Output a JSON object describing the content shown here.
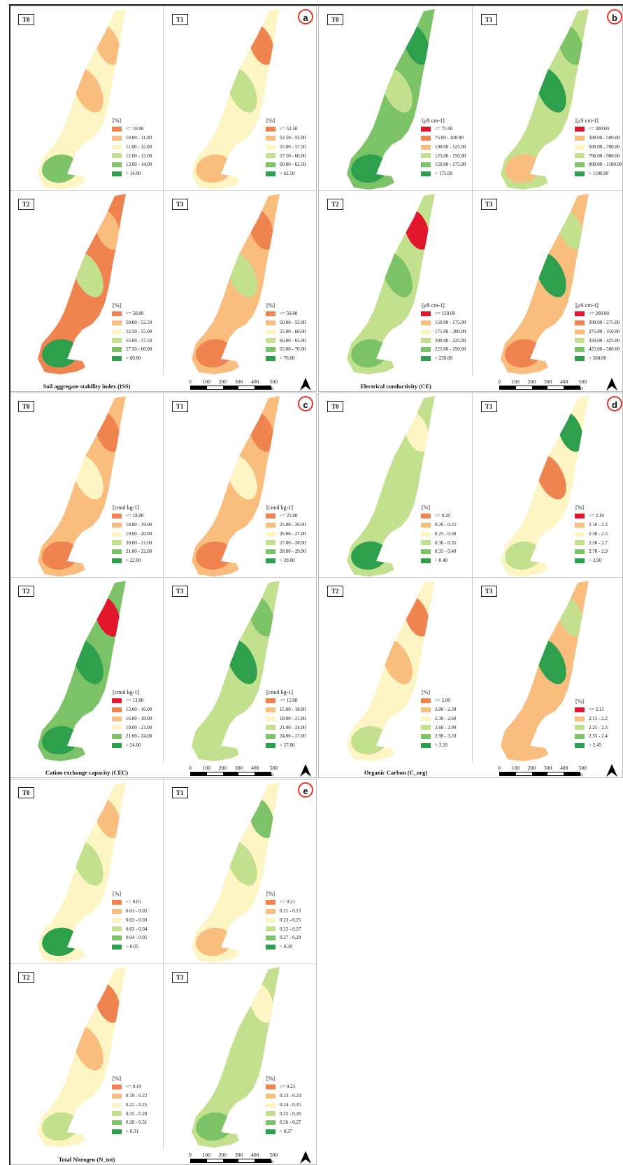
{
  "scale_labels": [
    "0",
    "100",
    "200",
    "300",
    "400",
    "500 m"
  ],
  "north_label": "north-arrow",
  "colors": {
    "red": "#e2162c",
    "orange": "#f08450",
    "lightorange": "#f9bd7e",
    "cream": "#fdf5c3",
    "lightgreen": "#c3e08e",
    "green": "#7cc267",
    "darkgreen": "#2ea04d"
  },
  "panels": [
    {
      "letter": "a",
      "title": "Soil aggregate stability index (ISS)",
      "cells": [
        {
          "label": "T0",
          "unit": "[%]",
          "classes": [
            "<= 10.00",
            "10.00 - 11.00",
            "11.00 - 12.00",
            "12.00 - 13.00",
            "13.00 - 14.00",
            "> 14.00"
          ],
          "swatches": [
            "#f08450",
            "#f9bd7e",
            "#fdf5c3",
            "#c3e08e",
            "#7cc267",
            "#2ea04d"
          ],
          "base": "#fdf5c3",
          "patches": [
            "#f9bd7e",
            "#f9bd7e",
            "#7cc267"
          ]
        },
        {
          "label": "T1",
          "unit": "[%]",
          "classes": [
            "<= 52.50",
            "52.50 - 55.00",
            "55.00 - 57.50",
            "57.50 - 60.00",
            "60.00 - 62.50",
            "> 62.50"
          ],
          "swatches": [
            "#f08450",
            "#f9bd7e",
            "#fdf5c3",
            "#c3e08e",
            "#7cc267",
            "#2ea04d"
          ],
          "base": "#fdf5c3",
          "patches": [
            "#f08450",
            "#c3e08e",
            "#f9bd7e"
          ]
        },
        {
          "label": "T2",
          "unit": "[%]",
          "classes": [
            "<= 50.00",
            "50.00 - 52.50",
            "52.50 - 55.00",
            "55.00 - 57.50",
            "57.50 - 60.00",
            "> 60.00"
          ],
          "swatches": [
            "#f08450",
            "#f9bd7e",
            "#fdf5c3",
            "#c3e08e",
            "#7cc267",
            "#2ea04d"
          ],
          "base": "#f08450",
          "patches": [
            "#f9bd7e",
            "#c3e08e",
            "#2ea04d"
          ]
        },
        {
          "label": "T3",
          "unit": "[%]",
          "classes": [
            "<= 50.00",
            "50.00 - 55.00",
            "55.00 - 60.00",
            "60.00 - 65.00",
            "65.00 - 70.00",
            "> 70.00"
          ],
          "swatches": [
            "#f08450",
            "#f9bd7e",
            "#fdf5c3",
            "#c3e08e",
            "#7cc267",
            "#2ea04d"
          ],
          "base": "#f9bd7e",
          "patches": [
            "#f08450",
            "#c3e08e",
            "#f08450"
          ]
        }
      ]
    },
    {
      "letter": "b",
      "title": "Electrical conductivity (CE)",
      "cells": [
        {
          "label": "T0",
          "unit": "[µS cm-1]",
          "classes": [
            "<= 75.00",
            "75.00 - 100.00",
            "100.00 - 125.00",
            "125.00 - 150.00",
            "150.00 - 175.00",
            "> 175.00"
          ],
          "swatches": [
            "#e2162c",
            "#f08450",
            "#f9bd7e",
            "#c3e08e",
            "#7cc267",
            "#2ea04d"
          ],
          "base": "#7cc267",
          "patches": [
            "#2ea04d",
            "#c3e08e",
            "#2ea04d"
          ]
        },
        {
          "label": "T1",
          "unit": "[µS cm-1]",
          "classes": [
            "<= 300.00",
            "300.00 - 500.00",
            "500.00 - 700.00",
            "700.00 - 900.00",
            "900.00 - 1100.00",
            "> 1100.00"
          ],
          "swatches": [
            "#e2162c",
            "#f9bd7e",
            "#fdf5c3",
            "#c3e08e",
            "#7cc267",
            "#2ea04d"
          ],
          "base": "#c3e08e",
          "patches": [
            "#7cc267",
            "#2ea04d",
            "#f9bd7e"
          ]
        },
        {
          "label": "T2",
          "unit": "[µS cm-1]",
          "classes": [
            "<= 150.00",
            "150.00 - 175.00",
            "175.00 - 200.00",
            "200.00 - 225.00",
            "225.00 - 250.00",
            "> 250.00"
          ],
          "swatches": [
            "#e2162c",
            "#f9bd7e",
            "#fdf5c3",
            "#c3e08e",
            "#7cc267",
            "#2ea04d"
          ],
          "base": "#c3e08e",
          "patches": [
            "#e2162c",
            "#7cc267",
            "#7cc267"
          ]
        },
        {
          "label": "T3",
          "unit": "[µS cm-1]",
          "classes": [
            "<= 200.00",
            "200.00 - 275.00",
            "275.00 - 350.00",
            "350.00 - 425.00",
            "425.00 - 500.00",
            "> 500.00"
          ],
          "swatches": [
            "#e2162c",
            "#f08450",
            "#f9bd7e",
            "#c3e08e",
            "#7cc267",
            "#2ea04d"
          ],
          "base": "#f9bd7e",
          "patches": [
            "#c3e08e",
            "#2ea04d",
            "#f08450"
          ]
        }
      ]
    },
    {
      "letter": "c",
      "title": "Cation exchange capacity (CEC)",
      "cells": [
        {
          "label": "T0",
          "unit": "[cmol kg-1]",
          "classes": [
            "<= 18.00",
            "18.00 - 19.00",
            "19.00 - 20.00",
            "20.00 - 21.00",
            "21.00 - 22.00",
            "> 22.00"
          ],
          "swatches": [
            "#f08450",
            "#f9bd7e",
            "#fdf5c3",
            "#c3e08e",
            "#7cc267",
            "#2ea04d"
          ],
          "base": "#f9bd7e",
          "patches": [
            "#f08450",
            "#fdf5c3",
            "#f08450"
          ]
        },
        {
          "label": "T1",
          "unit": "[cmol kg-1]",
          "classes": [
            "<= 25.00",
            "25.00 - 26.00",
            "26.00 - 27.00",
            "27.00 - 28.00",
            "28.00 - 29.00",
            "> 29.00"
          ],
          "swatches": [
            "#f08450",
            "#f9bd7e",
            "#fdf5c3",
            "#c3e08e",
            "#7cc267",
            "#2ea04d"
          ],
          "base": "#f9bd7e",
          "patches": [
            "#f08450",
            "#fdf5c3",
            "#f08450"
          ]
        },
        {
          "label": "T2",
          "unit": "[cmol kg-1]",
          "classes": [
            "<= 13.00",
            "13.00 - 16.00",
            "16.00 - 19.00",
            "19.00 - 21.00",
            "21.00 - 24.00",
            "> 24.00"
          ],
          "swatches": [
            "#e2162c",
            "#f08450",
            "#f9bd7e",
            "#fdf5c3",
            "#7cc267",
            "#2ea04d"
          ],
          "base": "#7cc267",
          "patches": [
            "#e2162c",
            "#2ea04d",
            "#2ea04d"
          ]
        },
        {
          "label": "T3",
          "unit": "[cmol kg-1]",
          "classes": [
            "<= 15.00",
            "15.00 - 18.00",
            "18.00 - 21.00",
            "21.00 - 24.00",
            "24.00 - 27.00",
            "> 27.00"
          ],
          "swatches": [
            "#f08450",
            "#f9bd7e",
            "#fdf5c3",
            "#c3e08e",
            "#7cc267",
            "#2ea04d"
          ],
          "base": "#c3e08e",
          "patches": [
            "#7cc267",
            "#2ea04d",
            "#c3e08e"
          ]
        }
      ]
    },
    {
      "letter": "d",
      "title": "Organic Carbon (C_org)",
      "cells": [
        {
          "label": "T0",
          "unit": "[%]",
          "classes": [
            "<= 0.20",
            "0.20 - 0.25",
            "0.25 - 0.30",
            "0.30 - 0.35",
            "0.35 - 0.40",
            "> 0.40"
          ],
          "swatches": [
            "#f08450",
            "#f9bd7e",
            "#fdf5c3",
            "#c3e08e",
            "#7cc267",
            "#2ea04d"
          ],
          "base": "#c3e08e",
          "patches": [
            "#fdf5c3",
            "#c3e08e",
            "#2ea04d"
          ]
        },
        {
          "label": "T1",
          "unit": "[%]",
          "classes": [
            "<= 2.10",
            "2.10 - 2.3",
            "2.30 - 2.5",
            "2.50 - 2.7",
            "2.70 - 2.9",
            "> 2.90"
          ],
          "swatches": [
            "#e2162c",
            "#f9bd7e",
            "#fdf5c3",
            "#c3e08e",
            "#7cc267",
            "#2ea04d"
          ],
          "base": "#fdf5c3",
          "patches": [
            "#2ea04d",
            "#f08450",
            "#c3e08e"
          ]
        },
        {
          "label": "T2",
          "unit": "[%]",
          "classes": [
            "<= 2.00",
            "2.00 - 2.30",
            "2.30 - 2.60",
            "2.60 - 2.90",
            "2.90 - 3.20",
            "> 3.20"
          ],
          "swatches": [
            "#f08450",
            "#f9bd7e",
            "#fdf5c3",
            "#c3e08e",
            "#7cc267",
            "#2ea04d"
          ],
          "base": "#fdf5c3",
          "patches": [
            "#f08450",
            "#f9bd7e",
            "#c3e08e"
          ]
        },
        {
          "label": "T3",
          "unit": "[%]",
          "classes": [
            "<= 2.15",
            "2.15 - 2.2",
            "2.25 - 2.3",
            "2.35 - 2.4",
            "> 2.45"
          ],
          "swatches": [
            "#e2162c",
            "#f9bd7e",
            "#c3e08e",
            "#7cc267",
            "#2ea04d"
          ],
          "base": "#f9bd7e",
          "patches": [
            "#c3e08e",
            "#2ea04d",
            "#f9bd7e"
          ]
        }
      ]
    },
    {
      "letter": "e",
      "title": "Total Nitrogen (N_tot)",
      "cells": [
        {
          "label": "T0",
          "unit": "[%]",
          "classes": [
            "<= 0.01",
            "0.01 - 0.02",
            "0.02 - 0.03",
            "0.03 - 0.04",
            "0.04 - 0.05",
            "> 0.05"
          ],
          "swatches": [
            "#f08450",
            "#f9bd7e",
            "#fdf5c3",
            "#c3e08e",
            "#7cc267",
            "#2ea04d"
          ],
          "base": "#fdf5c3",
          "patches": [
            "#f9bd7e",
            "#c3e08e",
            "#2ea04d"
          ]
        },
        {
          "label": "T1",
          "unit": "[%]",
          "classes": [
            "<= 0.21",
            "0.21 - 0.23",
            "0.23 - 0.25",
            "0.25 - 0.27",
            "0.27 - 0.29",
            "> 0.29"
          ],
          "swatches": [
            "#f08450",
            "#f9bd7e",
            "#fdf5c3",
            "#c3e08e",
            "#7cc267",
            "#2ea04d"
          ],
          "base": "#fdf5c3",
          "patches": [
            "#7cc267",
            "#c3e08e",
            "#f9bd7e"
          ]
        },
        {
          "label": "T2",
          "unit": "[%]",
          "classes": [
            "<= 0.19",
            "0.19 - 0.22",
            "0.22 - 0.25",
            "0.25 - 0.28",
            "0.28 - 0.31",
            "> 0.31"
          ],
          "swatches": [
            "#f08450",
            "#f9bd7e",
            "#fdf5c3",
            "#c3e08e",
            "#7cc267",
            "#2ea04d"
          ],
          "base": "#fdf5c3",
          "patches": [
            "#f08450",
            "#f9bd7e",
            "#c3e08e"
          ]
        },
        {
          "label": "T3",
          "unit": "[%]",
          "classes": [
            "<= 0.23",
            "0.23 - 0.24",
            "0.24 - 0.25",
            "0.25 - 0.26",
            "0.26 - 0.27",
            "> 0.27"
          ],
          "swatches": [
            "#f08450",
            "#f9bd7e",
            "#fdf5c3",
            "#c3e08e",
            "#7cc267",
            "#2ea04d"
          ],
          "base": "#c3e08e",
          "patches": [
            "#fdf5c3",
            "#c3e08e",
            "#7cc267"
          ]
        }
      ]
    }
  ]
}
